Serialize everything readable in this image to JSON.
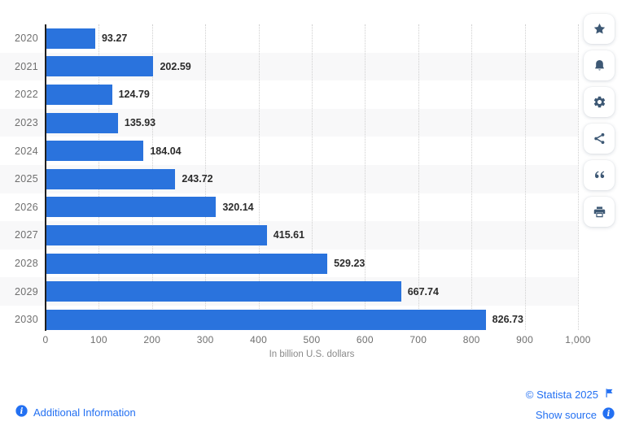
{
  "chart_data": {
    "type": "bar",
    "orientation": "horizontal",
    "title": "",
    "categories": [
      "2020",
      "2021",
      "2022",
      "2023",
      "2024",
      "2025",
      "2026",
      "2027",
      "2028",
      "2029",
      "2030"
    ],
    "values": [
      93.27,
      202.59,
      124.79,
      135.93,
      184.04,
      243.72,
      320.14,
      415.61,
      529.23,
      667.74,
      826.73
    ],
    "value_labels": [
      "93.27",
      "202.59",
      "124.79",
      "135.93",
      "184.04",
      "243.72",
      "320.14",
      "415.61",
      "529.23",
      "667.74",
      "826.73"
    ],
    "xlabel": "In billion U.S. dollars",
    "ylabel": "",
    "xlim": [
      0,
      1000
    ],
    "x_ticks": [
      "0",
      "100",
      "200",
      "300",
      "400",
      "500",
      "600",
      "700",
      "800",
      "900",
      "1,000"
    ],
    "grid": "vertical-dotted",
    "legend": "none",
    "bar_color": "#2a73dd",
    "alt_row_color": "#f8f8f9"
  },
  "toolbar": {
    "buttons": [
      {
        "name": "favorite-button",
        "icon": "star-icon"
      },
      {
        "name": "alert-button",
        "icon": "bell-icon"
      },
      {
        "name": "settings-button",
        "icon": "gear-icon"
      },
      {
        "name": "share-button",
        "icon": "share-icon"
      },
      {
        "name": "cite-button",
        "icon": "quote-icon"
      },
      {
        "name": "print-button",
        "icon": "printer-icon"
      }
    ]
  },
  "footer": {
    "additional_information": "Additional Information",
    "copyright": "© Statista 2025",
    "show_source": "Show source"
  },
  "colors": {
    "bar_blue": "#2a73dd",
    "link_blue": "#2370f2",
    "icon_navy": "#3d5874",
    "axis_text": "#6f6f6f"
  }
}
